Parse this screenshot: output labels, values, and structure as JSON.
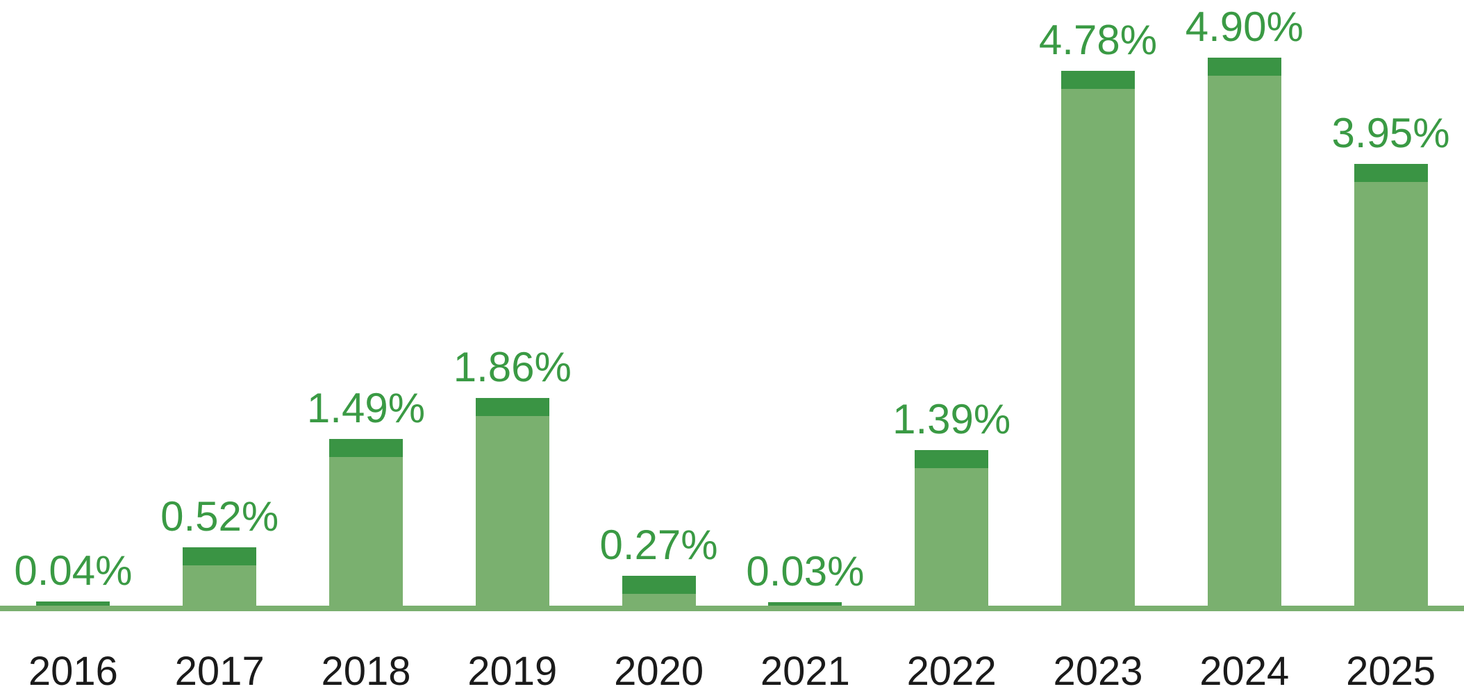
{
  "chart_data": {
    "type": "bar",
    "title": "",
    "xlabel": "",
    "ylabel": "",
    "unit": "%",
    "categories": [
      "2016",
      "2017",
      "2018",
      "2019",
      "2020",
      "2021",
      "2022",
      "2023",
      "2024",
      "2025"
    ],
    "values": [
      0.04,
      0.52,
      1.49,
      1.86,
      0.27,
      0.03,
      1.39,
      4.78,
      4.9,
      3.95
    ],
    "labels": [
      "0.04%",
      "0.52%",
      "1.49%",
      "1.86%",
      "0.27%",
      "0.03%",
      "1.39%",
      "4.78%",
      "4.90%",
      "3.95%"
    ],
    "ylim": [
      0,
      5.4
    ],
    "grid": false,
    "legend": false,
    "axis_line": true,
    "value_labels_position": "above-bar",
    "colors": {
      "bar_body": "#7ab06f",
      "bar_cap": "#3a9444",
      "value_label": "#3a9a44",
      "category_label": "#1a1a1a",
      "axis_line": "#7ab06f",
      "background": "#ffffff"
    }
  }
}
